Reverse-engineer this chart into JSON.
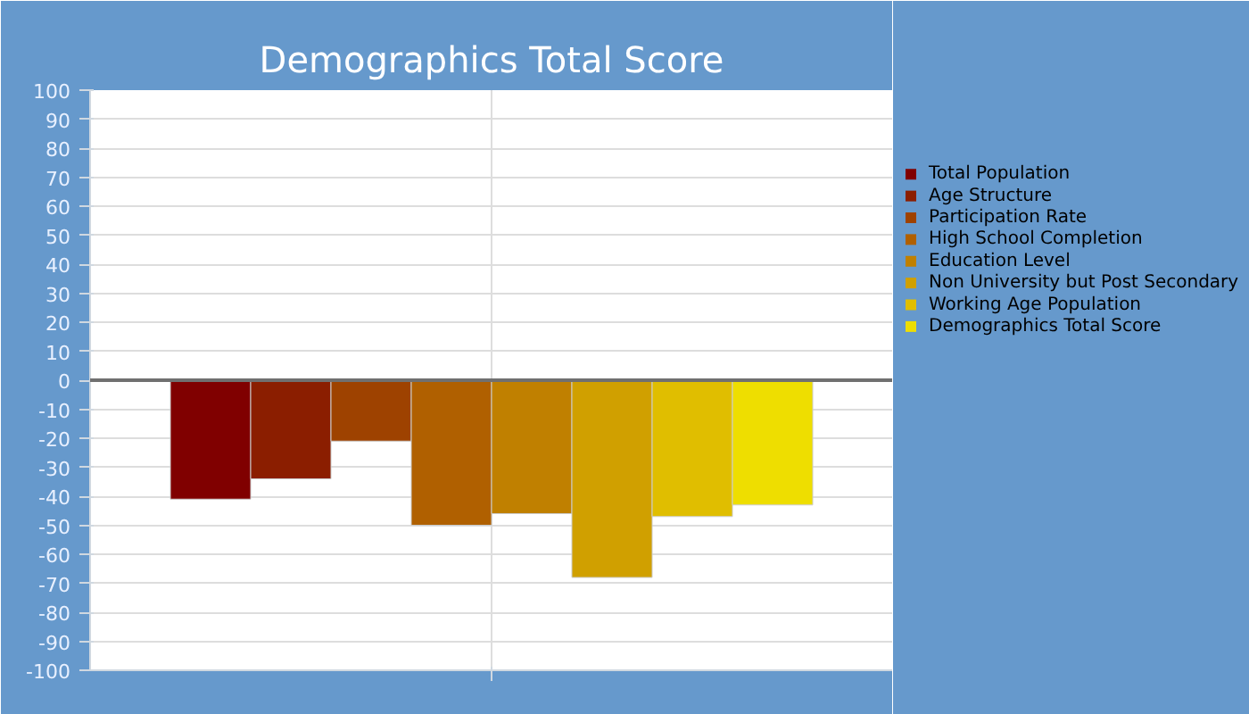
{
  "chart_data": {
    "type": "bar",
    "title": "Demographics Total Score",
    "categories": [
      null
    ],
    "series": [
      {
        "name": "Total Population",
        "color": "#800000",
        "values": [
          -41
        ]
      },
      {
        "name": "Age Structure",
        "color": "#8b1e00",
        "values": [
          -34
        ]
      },
      {
        "name": "Participation Rate",
        "color": "#9e4200",
        "values": [
          -21
        ]
      },
      {
        "name": "High School Completion",
        "color": "#b06000",
        "values": [
          -50
        ]
      },
      {
        "name": "Education Level",
        "color": "#c08000",
        "values": [
          -46
        ]
      },
      {
        "name": "Non University but Post Secondary",
        "color": "#d0a000",
        "values": [
          -68
        ]
      },
      {
        "name": "Working Age Population",
        "color": "#e0be00",
        "values": [
          -47
        ]
      },
      {
        "name": "Demographics Total Score",
        "color": "#eede00",
        "values": [
          -43
        ]
      }
    ],
    "ylim": [
      -100,
      100
    ],
    "yticks": [
      -100,
      -90,
      -80,
      -70,
      -60,
      -50,
      -40,
      -30,
      -20,
      -10,
      0,
      10,
      20,
      30,
      40,
      50,
      60,
      70,
      80,
      90,
      100
    ],
    "ref_lines": [
      {
        "axis": "y",
        "value": 0,
        "color": "#707070"
      }
    ],
    "grid": true,
    "legend": "right",
    "tick_labels": "y"
  }
}
